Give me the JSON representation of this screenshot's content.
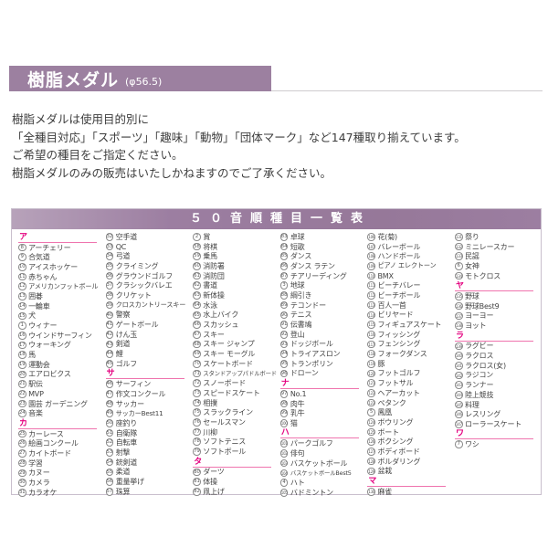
{
  "colors": {
    "accent_purple": "#9c80a0",
    "table_header_purple": "#967899",
    "section_pink": "#e4007f",
    "rule_gray": "#cfcccf"
  },
  "header": {
    "title": "樹脂メダル",
    "diameter": "(φ56.5)"
  },
  "intro": [
    "樹脂メダルは使用目的別に",
    "「全種目対応」「スポーツ」「趣味」「動物」「団体マーク」など147種取り揃えています。",
    "ご希望の種目をご指定ください。",
    "樹脂メダルのみの販売はいたしかねますのでご了承ください。"
  ],
  "table": {
    "title": "５０音順種目一覧表",
    "columns": [
      [
        {
          "sec": "ア"
        },
        {
          "n": 8,
          "t": "アーチェリー"
        },
        {
          "n": 9,
          "t": "合気道"
        },
        {
          "n": 10,
          "t": "アイスホッケー"
        },
        {
          "n": 11,
          "t": "赤ちゃん"
        },
        {
          "n": 12,
          "t": "アメリカンフットボール"
        },
        {
          "n": 13,
          "t": "囲碁"
        },
        {
          "n": 14,
          "t": "一輪車"
        },
        {
          "n": 15,
          "t": "犬"
        },
        {
          "n": 1,
          "t": "ウィナー"
        },
        {
          "n": 16,
          "t": "ウインドサーフィン"
        },
        {
          "n": 17,
          "t": "ウォーキング"
        },
        {
          "n": 18,
          "t": "馬"
        },
        {
          "n": 19,
          "t": "運動会"
        },
        {
          "n": 20,
          "t": "エアロビクス"
        },
        {
          "n": 21,
          "t": "駅伝"
        },
        {
          "n": 22,
          "t": "MVP"
        },
        {
          "n": 23,
          "t": "園芸 ガーデニング"
        },
        {
          "n": 24,
          "t": "音楽"
        },
        {
          "sec": "カ"
        },
        {
          "n": 25,
          "t": "カーレース"
        },
        {
          "n": 26,
          "t": "絵画コンクール"
        },
        {
          "n": 27,
          "t": "カイトボード"
        },
        {
          "n": 28,
          "t": "学習"
        },
        {
          "n": 29,
          "t": "カヌー"
        },
        {
          "n": 30,
          "t": "カメラ"
        },
        {
          "n": 31,
          "t": "カラオケ"
        }
      ],
      [
        {
          "n": 32,
          "t": "空手道"
        },
        {
          "n": 33,
          "t": "QC"
        },
        {
          "n": 34,
          "t": "弓道"
        },
        {
          "n": 35,
          "t": "クライミング"
        },
        {
          "n": 36,
          "t": "グラウンドゴルフ"
        },
        {
          "n": 37,
          "t": "クラシックバレエ"
        },
        {
          "n": 38,
          "t": "クリケット"
        },
        {
          "n": 39,
          "t": "クロスカントリースキー"
        },
        {
          "n": 40,
          "t": "警察"
        },
        {
          "n": 41,
          "t": "ゲートボール"
        },
        {
          "n": 42,
          "t": "けん玉"
        },
        {
          "n": 43,
          "t": "剣道"
        },
        {
          "n": 44,
          "t": "鯉"
        },
        {
          "n": 45,
          "t": "ゴルフ"
        },
        {
          "sec": "サ"
        },
        {
          "n": 46,
          "t": "サーフィン"
        },
        {
          "n": 47,
          "t": "作文コンクール"
        },
        {
          "n": 48,
          "t": "サッカー"
        },
        {
          "n": 49,
          "t": "サッカーBest11"
        },
        {
          "n": 50,
          "t": "座釣り"
        },
        {
          "n": 51,
          "t": "自衛隊"
        },
        {
          "n": 52,
          "t": "自転車"
        },
        {
          "n": 53,
          "t": "射撃"
        },
        {
          "n": 54,
          "t": "銃剣道"
        },
        {
          "n": 55,
          "t": "柔道"
        },
        {
          "n": 56,
          "t": "重量挙げ"
        },
        {
          "n": 57,
          "t": "珠算"
        }
      ],
      [
        {
          "n": 2,
          "t": "賞"
        },
        {
          "n": 58,
          "t": "将棋"
        },
        {
          "n": 59,
          "t": "乗馬"
        },
        {
          "n": 60,
          "t": "消防署"
        },
        {
          "n": 61,
          "t": "消防団"
        },
        {
          "n": 62,
          "t": "書道"
        },
        {
          "n": 63,
          "t": "新体操"
        },
        {
          "n": 64,
          "t": "水泳"
        },
        {
          "n": 65,
          "t": "水上バイク"
        },
        {
          "n": 66,
          "t": "スカッシュ"
        },
        {
          "n": 67,
          "t": "スキー"
        },
        {
          "n": 68,
          "t": "スキー ジャンプ"
        },
        {
          "n": 69,
          "t": "スキー モーグル"
        },
        {
          "n": 70,
          "t": "スケートボード"
        },
        {
          "n": 71,
          "t": "スタンドアップパドルボード"
        },
        {
          "n": 72,
          "t": "スノーボード"
        },
        {
          "n": 73,
          "t": "スピードスケート"
        },
        {
          "n": 74,
          "t": "相撲"
        },
        {
          "n": 75,
          "t": "スラックライン"
        },
        {
          "n": 76,
          "t": "セールスマン"
        },
        {
          "n": 77,
          "t": "川柳"
        },
        {
          "n": 78,
          "t": "ソフトテニス"
        },
        {
          "n": 79,
          "t": "ソフトボール"
        },
        {
          "sec": "タ"
        },
        {
          "n": 80,
          "t": "ダーツ"
        },
        {
          "n": 81,
          "t": "体操"
        },
        {
          "n": 82,
          "t": "凧上げ"
        }
      ],
      [
        {
          "n": 83,
          "t": "卓球"
        },
        {
          "n": 84,
          "t": "短歌"
        },
        {
          "n": 85,
          "t": "ダンス"
        },
        {
          "n": 86,
          "t": "ダンス ラテン"
        },
        {
          "n": 87,
          "t": "チアリーディング"
        },
        {
          "n": 3,
          "t": "地球"
        },
        {
          "n": 88,
          "t": "綱引き"
        },
        {
          "n": 89,
          "t": "テコンドー"
        },
        {
          "n": 90,
          "t": "テニス"
        },
        {
          "n": 91,
          "t": "伝書鳩"
        },
        {
          "n": 92,
          "t": "登山"
        },
        {
          "n": 93,
          "t": "ドッジボール"
        },
        {
          "n": 94,
          "t": "トライアスロン"
        },
        {
          "n": 95,
          "t": "トランポリン"
        },
        {
          "n": 96,
          "t": "ドローン"
        },
        {
          "sec": "ナ"
        },
        {
          "n": 97,
          "t": "No.1"
        },
        {
          "n": 98,
          "t": "肉牛"
        },
        {
          "n": 99,
          "t": "乳牛"
        },
        {
          "n": 100,
          "t": "猫"
        },
        {
          "sec": "ハ"
        },
        {
          "n": 101,
          "t": "パークゴルフ"
        },
        {
          "n": 102,
          "t": "俳句"
        },
        {
          "n": 103,
          "t": "バスケットボール"
        },
        {
          "n": 104,
          "t": "バスケットボールBest5"
        },
        {
          "n": 4,
          "t": "ハト"
        },
        {
          "n": 105,
          "t": "バドミントン"
        }
      ],
      [
        {
          "n": 106,
          "t": "花(菊)"
        },
        {
          "n": 107,
          "t": "バレーボール"
        },
        {
          "n": 108,
          "t": "ハンドボール"
        },
        {
          "n": 109,
          "t": "ピアノ エレクトーン"
        },
        {
          "n": 110,
          "t": "BMX"
        },
        {
          "n": 111,
          "t": "ビーチバレー"
        },
        {
          "n": 112,
          "t": "ビーチボール"
        },
        {
          "n": 113,
          "t": "百人一首"
        },
        {
          "n": 114,
          "t": "ビリヤード"
        },
        {
          "n": 115,
          "t": "フィギュアスケート"
        },
        {
          "n": 116,
          "t": "フィッシング"
        },
        {
          "n": 117,
          "t": "フェンシング"
        },
        {
          "n": 118,
          "t": "フォークダンス"
        },
        {
          "n": 119,
          "t": "豚"
        },
        {
          "n": 120,
          "t": "フットゴルフ"
        },
        {
          "n": 121,
          "t": "フットサル"
        },
        {
          "n": 122,
          "t": "ヘアーカット"
        },
        {
          "n": 123,
          "t": "ペタンク"
        },
        {
          "n": 5,
          "t": "鳳凰"
        },
        {
          "n": 124,
          "t": "ボウリング"
        },
        {
          "n": 125,
          "t": "ボート"
        },
        {
          "n": 126,
          "t": "ボクシング"
        },
        {
          "n": 127,
          "t": "ボディボード"
        },
        {
          "n": 128,
          "t": "ボルダリング"
        },
        {
          "n": 129,
          "t": "盆栽"
        },
        {
          "sec": "マ"
        },
        {
          "n": 130,
          "t": "麻雀"
        }
      ],
      [
        {
          "n": 131,
          "t": "祭り"
        },
        {
          "n": 132,
          "t": "ミニレースカー"
        },
        {
          "n": 133,
          "t": "民謡"
        },
        {
          "n": 6,
          "t": "女神"
        },
        {
          "n": 134,
          "t": "モトクロス"
        },
        {
          "sec": "ヤ"
        },
        {
          "n": 135,
          "t": "野球"
        },
        {
          "n": 136,
          "t": "野球Best9"
        },
        {
          "n": 137,
          "t": "ヨーヨー"
        },
        {
          "n": 138,
          "t": "ヨット"
        },
        {
          "sec": "ラ"
        },
        {
          "n": 139,
          "t": "ラグビー"
        },
        {
          "n": 140,
          "t": "ラクロス"
        },
        {
          "n": 141,
          "t": "ラクロス(女)"
        },
        {
          "n": 142,
          "t": "ラジコン"
        },
        {
          "n": 143,
          "t": "ランナー"
        },
        {
          "n": 144,
          "t": "陸上競技"
        },
        {
          "n": 145,
          "t": "料理"
        },
        {
          "n": 146,
          "t": "レスリング"
        },
        {
          "n": 147,
          "t": "ローラースケート"
        },
        {
          "sec": "ワ"
        },
        {
          "n": 7,
          "t": "ワシ"
        }
      ]
    ]
  }
}
